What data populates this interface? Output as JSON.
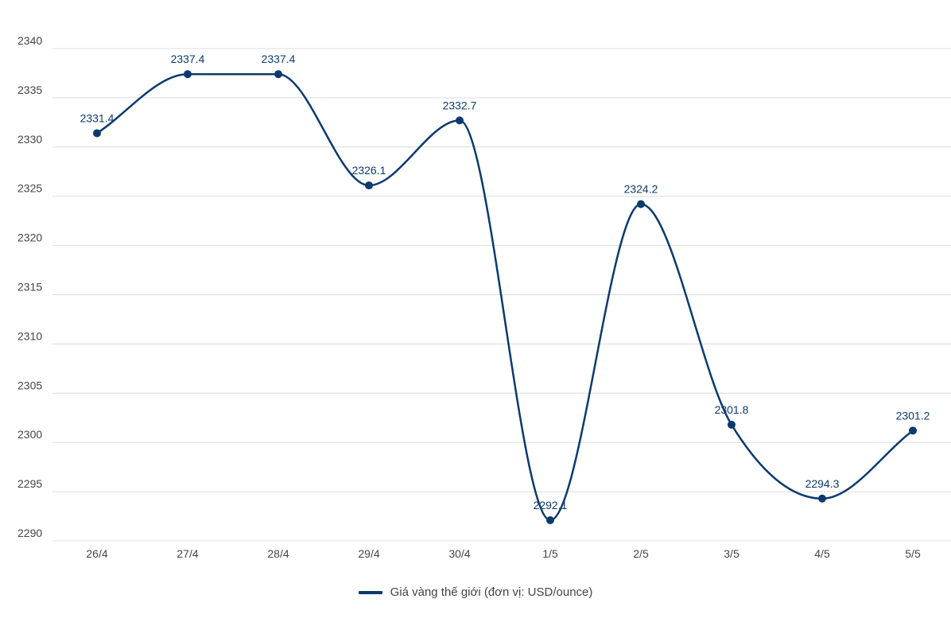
{
  "chart_data": {
    "type": "line",
    "categories": [
      "26/4",
      "27/4",
      "28/4",
      "29/4",
      "30/4",
      "1/5",
      "2/5",
      "3/5",
      "4/5",
      "5/5"
    ],
    "series": [
      {
        "name": "Giá vàng thế giới (đơn vị: USD/ounce)",
        "values": [
          2331.4,
          2337.4,
          2337.4,
          2326.1,
          2332.7,
          2292.1,
          2324.2,
          2301.8,
          2294.3,
          2301.2
        ],
        "labels": [
          "2331.4",
          "2337.4",
          "2337.4",
          "2326.1",
          "2332.7",
          "2292.1",
          "2324.2",
          "2301.8",
          "2294.3",
          "2301.2"
        ]
      }
    ],
    "yticks": [
      "2290",
      "2295",
      "2300",
      "2305",
      "2310",
      "2315",
      "2320",
      "2325",
      "2330",
      "2335",
      "2340"
    ],
    "ylim": [
      2290,
      2340
    ],
    "grid": true,
    "legend_position": "bottom",
    "line_color": "#0b3a6e",
    "grid_color": "#dcdcdc",
    "title": "",
    "xlabel": "",
    "ylabel": ""
  }
}
